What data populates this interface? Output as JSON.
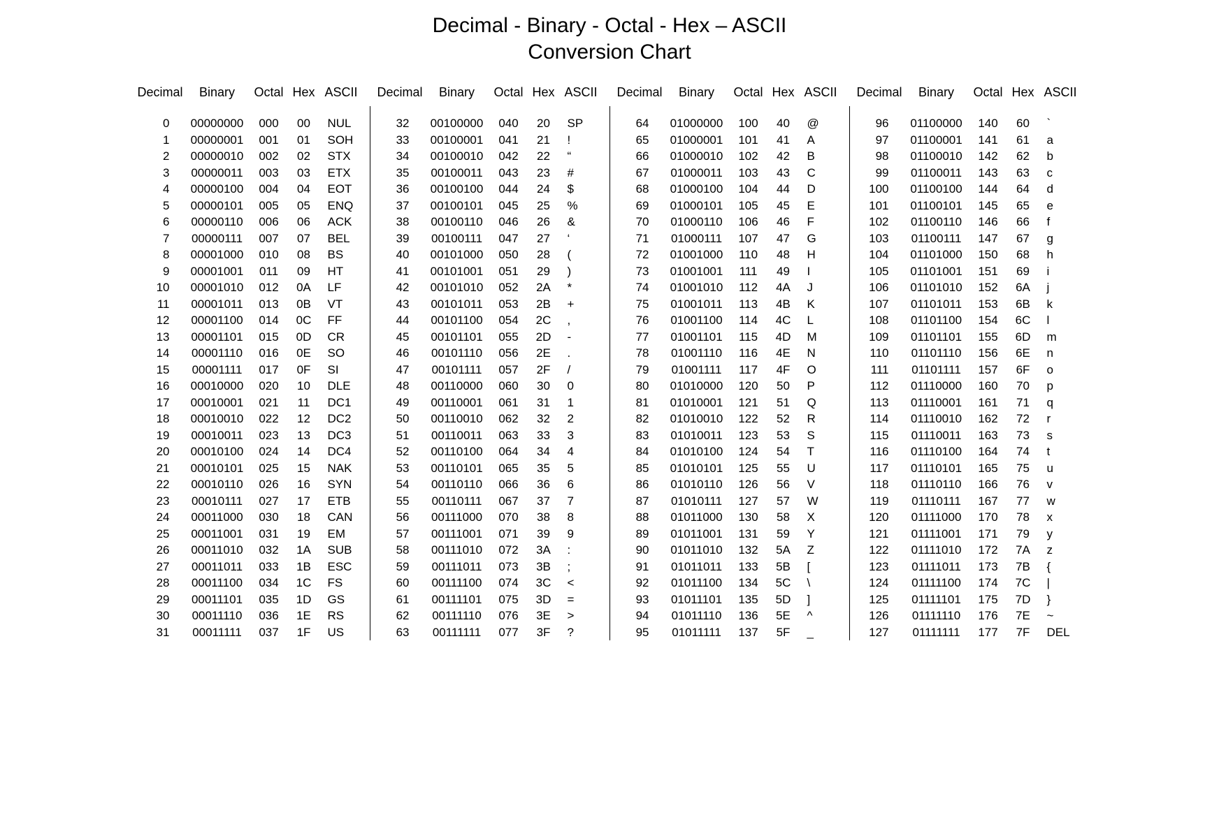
{
  "title": "Decimal - Binary - Octal - Hex – ASCII",
  "subtitle": "Conversion Chart",
  "headers": {
    "decimal": "Decimal",
    "binary": "Binary",
    "octal": "Octal",
    "hex": "Hex",
    "ascii": "ASCII"
  },
  "style": {
    "background_color": "#ffffff",
    "text_color": "#000000",
    "title_fontsize": 30,
    "header_fontsize": 18,
    "data_fontsize": 17,
    "line_height": 23.5,
    "font_family": "Arial",
    "divider_color": "#000000"
  },
  "columns": [
    [
      {
        "dec": "0",
        "bin": "00000000",
        "oct": "000",
        "hex": "00",
        "ascii": "NUL"
      },
      {
        "dec": "1",
        "bin": "00000001",
        "oct": "001",
        "hex": "01",
        "ascii": "SOH"
      },
      {
        "dec": "2",
        "bin": "00000010",
        "oct": "002",
        "hex": "02",
        "ascii": "STX"
      },
      {
        "dec": "3",
        "bin": "00000011",
        "oct": "003",
        "hex": "03",
        "ascii": "ETX"
      },
      {
        "dec": "4",
        "bin": "00000100",
        "oct": "004",
        "hex": "04",
        "ascii": "EOT"
      },
      {
        "dec": "5",
        "bin": "00000101",
        "oct": "005",
        "hex": "05",
        "ascii": "ENQ"
      },
      {
        "dec": "6",
        "bin": "00000110",
        "oct": "006",
        "hex": "06",
        "ascii": "ACK"
      },
      {
        "dec": "7",
        "bin": "00000111",
        "oct": "007",
        "hex": "07",
        "ascii": "BEL"
      },
      {
        "dec": "8",
        "bin": "00001000",
        "oct": "010",
        "hex": "08",
        "ascii": "BS"
      },
      {
        "dec": "9",
        "bin": "00001001",
        "oct": "011",
        "hex": "09",
        "ascii": "HT"
      },
      {
        "dec": "10",
        "bin": "00001010",
        "oct": "012",
        "hex": "0A",
        "ascii": "LF"
      },
      {
        "dec": "11",
        "bin": "00001011",
        "oct": "013",
        "hex": "0B",
        "ascii": "VT"
      },
      {
        "dec": "12",
        "bin": "00001100",
        "oct": "014",
        "hex": "0C",
        "ascii": "FF"
      },
      {
        "dec": "13",
        "bin": "00001101",
        "oct": "015",
        "hex": "0D",
        "ascii": "CR"
      },
      {
        "dec": "14",
        "bin": "00001110",
        "oct": "016",
        "hex": "0E",
        "ascii": "SO"
      },
      {
        "dec": "15",
        "bin": "00001111",
        "oct": "017",
        "hex": "0F",
        "ascii": "SI"
      },
      {
        "dec": "16",
        "bin": "00010000",
        "oct": "020",
        "hex": "10",
        "ascii": "DLE"
      },
      {
        "dec": "17",
        "bin": "00010001",
        "oct": "021",
        "hex": "11",
        "ascii": "DC1"
      },
      {
        "dec": "18",
        "bin": "00010010",
        "oct": "022",
        "hex": "12",
        "ascii": "DC2"
      },
      {
        "dec": "19",
        "bin": "00010011",
        "oct": "023",
        "hex": "13",
        "ascii": "DC3"
      },
      {
        "dec": "20",
        "bin": "00010100",
        "oct": "024",
        "hex": "14",
        "ascii": "DC4"
      },
      {
        "dec": "21",
        "bin": "00010101",
        "oct": "025",
        "hex": "15",
        "ascii": "NAK"
      },
      {
        "dec": "22",
        "bin": "00010110",
        "oct": "026",
        "hex": "16",
        "ascii": "SYN"
      },
      {
        "dec": "23",
        "bin": "00010111",
        "oct": "027",
        "hex": "17",
        "ascii": "ETB"
      },
      {
        "dec": "24",
        "bin": "00011000",
        "oct": "030",
        "hex": "18",
        "ascii": "CAN"
      },
      {
        "dec": "25",
        "bin": "00011001",
        "oct": "031",
        "hex": "19",
        "ascii": "EM"
      },
      {
        "dec": "26",
        "bin": "00011010",
        "oct": "032",
        "hex": "1A",
        "ascii": "SUB"
      },
      {
        "dec": "27",
        "bin": "00011011",
        "oct": "033",
        "hex": "1B",
        "ascii": "ESC"
      },
      {
        "dec": "28",
        "bin": "00011100",
        "oct": "034",
        "hex": "1C",
        "ascii": "FS"
      },
      {
        "dec": "29",
        "bin": "00011101",
        "oct": "035",
        "hex": "1D",
        "ascii": "GS"
      },
      {
        "dec": "30",
        "bin": "00011110",
        "oct": "036",
        "hex": "1E",
        "ascii": "RS"
      },
      {
        "dec": "31",
        "bin": "00011111",
        "oct": "037",
        "hex": "1F",
        "ascii": "US"
      }
    ],
    [
      {
        "dec": "32",
        "bin": "00100000",
        "oct": "040",
        "hex": "20",
        "ascii": "SP"
      },
      {
        "dec": "33",
        "bin": "00100001",
        "oct": "041",
        "hex": "21",
        "ascii": "!"
      },
      {
        "dec": "34",
        "bin": "00100010",
        "oct": "042",
        "hex": "22",
        "ascii": "“"
      },
      {
        "dec": "35",
        "bin": "00100011",
        "oct": "043",
        "hex": "23",
        "ascii": "#"
      },
      {
        "dec": "36",
        "bin": "00100100",
        "oct": "044",
        "hex": "24",
        "ascii": "$"
      },
      {
        "dec": "37",
        "bin": "00100101",
        "oct": "045",
        "hex": "25",
        "ascii": "%"
      },
      {
        "dec": "38",
        "bin": "00100110",
        "oct": "046",
        "hex": "26",
        "ascii": "&"
      },
      {
        "dec": "39",
        "bin": "00100111",
        "oct": "047",
        "hex": "27",
        "ascii": "‘"
      },
      {
        "dec": "40",
        "bin": "00101000",
        "oct": "050",
        "hex": "28",
        "ascii": "("
      },
      {
        "dec": "41",
        "bin": "00101001",
        "oct": "051",
        "hex": "29",
        "ascii": ")"
      },
      {
        "dec": "42",
        "bin": "00101010",
        "oct": "052",
        "hex": "2A",
        "ascii": "*"
      },
      {
        "dec": "43",
        "bin": "00101011",
        "oct": "053",
        "hex": "2B",
        "ascii": "+"
      },
      {
        "dec": "44",
        "bin": "00101100",
        "oct": "054",
        "hex": "2C",
        "ascii": ","
      },
      {
        "dec": "45",
        "bin": "00101101",
        "oct": "055",
        "hex": "2D",
        "ascii": "-"
      },
      {
        "dec": "46",
        "bin": "00101110",
        "oct": "056",
        "hex": "2E",
        "ascii": "."
      },
      {
        "dec": "47",
        "bin": "00101111",
        "oct": "057",
        "hex": "2F",
        "ascii": "/"
      },
      {
        "dec": "48",
        "bin": "00110000",
        "oct": "060",
        "hex": "30",
        "ascii": "0"
      },
      {
        "dec": "49",
        "bin": "00110001",
        "oct": "061",
        "hex": "31",
        "ascii": "1"
      },
      {
        "dec": "50",
        "bin": "00110010",
        "oct": "062",
        "hex": "32",
        "ascii": "2"
      },
      {
        "dec": "51",
        "bin": "00110011",
        "oct": "063",
        "hex": "33",
        "ascii": "3"
      },
      {
        "dec": "52",
        "bin": "00110100",
        "oct": "064",
        "hex": "34",
        "ascii": "4"
      },
      {
        "dec": "53",
        "bin": "00110101",
        "oct": "065",
        "hex": "35",
        "ascii": "5"
      },
      {
        "dec": "54",
        "bin": "00110110",
        "oct": "066",
        "hex": "36",
        "ascii": "6"
      },
      {
        "dec": "55",
        "bin": "00110111",
        "oct": "067",
        "hex": "37",
        "ascii": "7"
      },
      {
        "dec": "56",
        "bin": "00111000",
        "oct": "070",
        "hex": "38",
        "ascii": "8"
      },
      {
        "dec": "57",
        "bin": "00111001",
        "oct": "071",
        "hex": "39",
        "ascii": "9"
      },
      {
        "dec": "58",
        "bin": "00111010",
        "oct": "072",
        "hex": "3A",
        "ascii": ":"
      },
      {
        "dec": "59",
        "bin": "00111011",
        "oct": "073",
        "hex": "3B",
        "ascii": ";"
      },
      {
        "dec": "60",
        "bin": "00111100",
        "oct": "074",
        "hex": "3C",
        "ascii": "<"
      },
      {
        "dec": "61",
        "bin": "00111101",
        "oct": "075",
        "hex": "3D",
        "ascii": "="
      },
      {
        "dec": "62",
        "bin": "00111110",
        "oct": "076",
        "hex": "3E",
        "ascii": ">"
      },
      {
        "dec": "63",
        "bin": "00111111",
        "oct": "077",
        "hex": "3F",
        "ascii": "?"
      }
    ],
    [
      {
        "dec": "64",
        "bin": "01000000",
        "oct": "100",
        "hex": "40",
        "ascii": "@"
      },
      {
        "dec": "65",
        "bin": "01000001",
        "oct": "101",
        "hex": "41",
        "ascii": "A"
      },
      {
        "dec": "66",
        "bin": "01000010",
        "oct": "102",
        "hex": "42",
        "ascii": "B"
      },
      {
        "dec": "67",
        "bin": "01000011",
        "oct": "103",
        "hex": "43",
        "ascii": "C"
      },
      {
        "dec": "68",
        "bin": "01000100",
        "oct": "104",
        "hex": "44",
        "ascii": "D"
      },
      {
        "dec": "69",
        "bin": "01000101",
        "oct": "105",
        "hex": "45",
        "ascii": "E"
      },
      {
        "dec": "70",
        "bin": "01000110",
        "oct": "106",
        "hex": "46",
        "ascii": "F"
      },
      {
        "dec": "71",
        "bin": "01000111",
        "oct": "107",
        "hex": "47",
        "ascii": "G"
      },
      {
        "dec": "72",
        "bin": "01001000",
        "oct": "110",
        "hex": "48",
        "ascii": "H"
      },
      {
        "dec": "73",
        "bin": "01001001",
        "oct": "111",
        "hex": "49",
        "ascii": "I"
      },
      {
        "dec": "74",
        "bin": "01001010",
        "oct": "112",
        "hex": "4A",
        "ascii": "J"
      },
      {
        "dec": "75",
        "bin": "01001011",
        "oct": "113",
        "hex": "4B",
        "ascii": "K"
      },
      {
        "dec": "76",
        "bin": "01001100",
        "oct": "114",
        "hex": "4C",
        "ascii": "L"
      },
      {
        "dec": "77",
        "bin": "01001101",
        "oct": "115",
        "hex": "4D",
        "ascii": "M"
      },
      {
        "dec": "78",
        "bin": "01001110",
        "oct": "116",
        "hex": "4E",
        "ascii": "N"
      },
      {
        "dec": "79",
        "bin": "01001111",
        "oct": "117",
        "hex": "4F",
        "ascii": "O"
      },
      {
        "dec": "80",
        "bin": "01010000",
        "oct": "120",
        "hex": "50",
        "ascii": "P"
      },
      {
        "dec": "81",
        "bin": "01010001",
        "oct": "121",
        "hex": "51",
        "ascii": "Q"
      },
      {
        "dec": "82",
        "bin": "01010010",
        "oct": "122",
        "hex": "52",
        "ascii": "R"
      },
      {
        "dec": "83",
        "bin": "01010011",
        "oct": "123",
        "hex": "53",
        "ascii": "S"
      },
      {
        "dec": "84",
        "bin": "01010100",
        "oct": "124",
        "hex": "54",
        "ascii": "T"
      },
      {
        "dec": "85",
        "bin": "01010101",
        "oct": "125",
        "hex": "55",
        "ascii": "U"
      },
      {
        "dec": "86",
        "bin": "01010110",
        "oct": "126",
        "hex": "56",
        "ascii": "V"
      },
      {
        "dec": "87",
        "bin": "01010111",
        "oct": "127",
        "hex": "57",
        "ascii": "W"
      },
      {
        "dec": "88",
        "bin": "01011000",
        "oct": "130",
        "hex": "58",
        "ascii": "X"
      },
      {
        "dec": "89",
        "bin": "01011001",
        "oct": "131",
        "hex": "59",
        "ascii": "Y"
      },
      {
        "dec": "90",
        "bin": "01011010",
        "oct": "132",
        "hex": "5A",
        "ascii": "Z"
      },
      {
        "dec": "91",
        "bin": "01011011",
        "oct": "133",
        "hex": "5B",
        "ascii": "["
      },
      {
        "dec": "92",
        "bin": "01011100",
        "oct": "134",
        "hex": "5C",
        "ascii": "\\"
      },
      {
        "dec": "93",
        "bin": "01011101",
        "oct": "135",
        "hex": "5D",
        "ascii": "]"
      },
      {
        "dec": "94",
        "bin": "01011110",
        "oct": "136",
        "hex": "5E",
        "ascii": "^"
      },
      {
        "dec": "95",
        "bin": "01011111",
        "oct": "137",
        "hex": "5F",
        "ascii": "_"
      }
    ],
    [
      {
        "dec": "96",
        "bin": "01100000",
        "oct": "140",
        "hex": "60",
        "ascii": "`"
      },
      {
        "dec": "97",
        "bin": "01100001",
        "oct": "141",
        "hex": "61",
        "ascii": "a"
      },
      {
        "dec": "98",
        "bin": "01100010",
        "oct": "142",
        "hex": "62",
        "ascii": "b"
      },
      {
        "dec": "99",
        "bin": "01100011",
        "oct": "143",
        "hex": "63",
        "ascii": "c"
      },
      {
        "dec": "100",
        "bin": "01100100",
        "oct": "144",
        "hex": "64",
        "ascii": "d"
      },
      {
        "dec": "101",
        "bin": "01100101",
        "oct": "145",
        "hex": "65",
        "ascii": "e"
      },
      {
        "dec": "102",
        "bin": "01100110",
        "oct": "146",
        "hex": "66",
        "ascii": "f"
      },
      {
        "dec": "103",
        "bin": "01100111",
        "oct": "147",
        "hex": "67",
        "ascii": "g"
      },
      {
        "dec": "104",
        "bin": "01101000",
        "oct": "150",
        "hex": "68",
        "ascii": "h"
      },
      {
        "dec": "105",
        "bin": "01101001",
        "oct": "151",
        "hex": "69",
        "ascii": "i"
      },
      {
        "dec": "106",
        "bin": "01101010",
        "oct": "152",
        "hex": "6A",
        "ascii": "j"
      },
      {
        "dec": "107",
        "bin": "01101011",
        "oct": "153",
        "hex": "6B",
        "ascii": "k"
      },
      {
        "dec": "108",
        "bin": "01101100",
        "oct": "154",
        "hex": "6C",
        "ascii": "l"
      },
      {
        "dec": "109",
        "bin": "01101101",
        "oct": "155",
        "hex": "6D",
        "ascii": "m"
      },
      {
        "dec": "110",
        "bin": "01101110",
        "oct": "156",
        "hex": "6E",
        "ascii": "n"
      },
      {
        "dec": "111",
        "bin": "01101111",
        "oct": "157",
        "hex": "6F",
        "ascii": "o"
      },
      {
        "dec": "112",
        "bin": "01110000",
        "oct": "160",
        "hex": "70",
        "ascii": "p"
      },
      {
        "dec": "113",
        "bin": "01110001",
        "oct": "161",
        "hex": "71",
        "ascii": "q"
      },
      {
        "dec": "114",
        "bin": "01110010",
        "oct": "162",
        "hex": "72",
        "ascii": "r"
      },
      {
        "dec": "115",
        "bin": "01110011",
        "oct": "163",
        "hex": "73",
        "ascii": "s"
      },
      {
        "dec": "116",
        "bin": "01110100",
        "oct": "164",
        "hex": "74",
        "ascii": "t"
      },
      {
        "dec": "117",
        "bin": "01110101",
        "oct": "165",
        "hex": "75",
        "ascii": "u"
      },
      {
        "dec": "118",
        "bin": "01110110",
        "oct": "166",
        "hex": "76",
        "ascii": "v"
      },
      {
        "dec": "119",
        "bin": "01110111",
        "oct": "167",
        "hex": "77",
        "ascii": "w"
      },
      {
        "dec": "120",
        "bin": "01111000",
        "oct": "170",
        "hex": "78",
        "ascii": "x"
      },
      {
        "dec": "121",
        "bin": "01111001",
        "oct": "171",
        "hex": "79",
        "ascii": "y"
      },
      {
        "dec": "122",
        "bin": "01111010",
        "oct": "172",
        "hex": "7A",
        "ascii": "z"
      },
      {
        "dec": "123",
        "bin": "01111011",
        "oct": "173",
        "hex": "7B",
        "ascii": "{"
      },
      {
        "dec": "124",
        "bin": "01111100",
        "oct": "174",
        "hex": "7C",
        "ascii": "|"
      },
      {
        "dec": "125",
        "bin": "01111101",
        "oct": "175",
        "hex": "7D",
        "ascii": "}"
      },
      {
        "dec": "126",
        "bin": "01111110",
        "oct": "176",
        "hex": "7E",
        "ascii": "~"
      },
      {
        "dec": "127",
        "bin": "01111111",
        "oct": "177",
        "hex": "7F",
        "ascii": "DEL"
      }
    ]
  ]
}
